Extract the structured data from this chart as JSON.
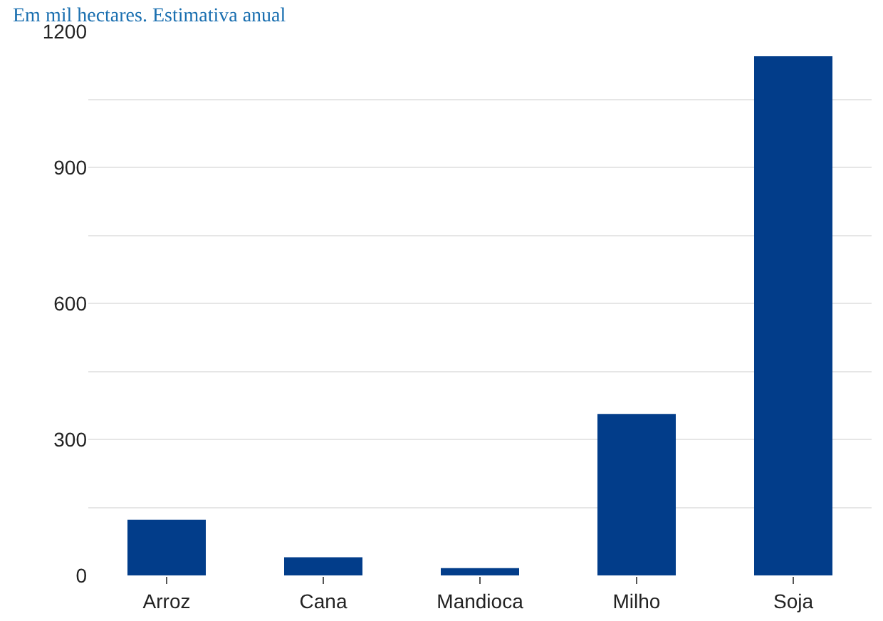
{
  "chart_data": {
    "type": "bar",
    "subtitle": "Em mil hectares. Estimativa anual",
    "categories": [
      "Arroz",
      "Cana",
      "Mandioca",
      "Milho",
      "Soja"
    ],
    "values": [
      123,
      40,
      16,
      356,
      1145
    ],
    "color": "#023d8a",
    "ylim": [
      0,
      1200
    ],
    "yticks": [
      0,
      {
        "value": 150,
        "label": null
      },
      300,
      {
        "value": 450,
        "label": null
      },
      600,
      {
        "value": 750,
        "label": null
      },
      900,
      {
        "value": 1050,
        "label": null
      },
      1200
    ],
    "grid": "y"
  }
}
